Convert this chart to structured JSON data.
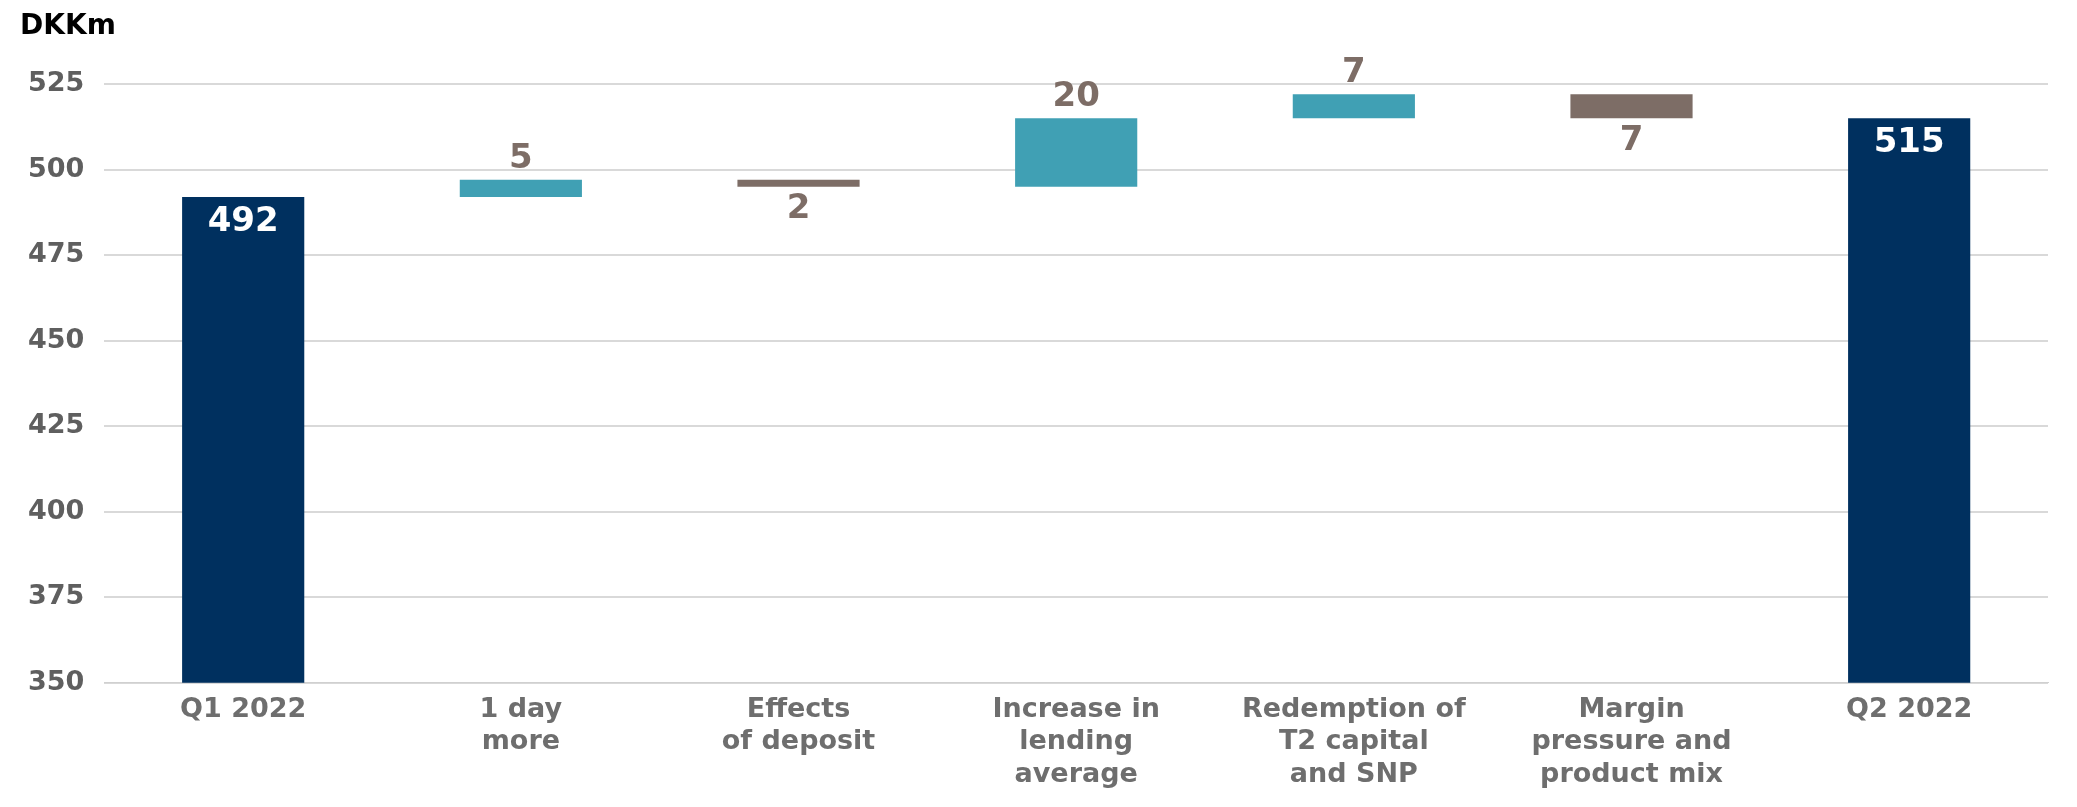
{
  "chart_data": {
    "type": "bar",
    "ylabel": "DKKm",
    "categories": [
      "Q1 2022",
      "1 day\nmore",
      "Effects\nof deposit",
      "Increase in\nlending\naverage",
      "Redemption of\nT2 capital\nand SNP",
      "Margin\npressure and\nproduct mix",
      "Q2 2022"
    ],
    "values": [
      492,
      5,
      -2,
      20,
      7,
      -7,
      515
    ],
    "base": [
      0,
      492,
      497,
      495,
      515,
      522,
      0
    ],
    "colors": [
      "#00305f",
      "#40a0b4",
      "#7d6d66",
      "#40a0b4",
      "#40a0b4",
      "#7d6d66",
      "#00305f"
    ],
    "value_labels": [
      "492",
      "5",
      "2",
      "20",
      "7",
      "7",
      "515"
    ],
    "ylim": [
      350,
      525
    ],
    "yticks": [
      350,
      375,
      400,
      425,
      450,
      475,
      500,
      525
    ],
    "grid": "y",
    "legend": false
  }
}
